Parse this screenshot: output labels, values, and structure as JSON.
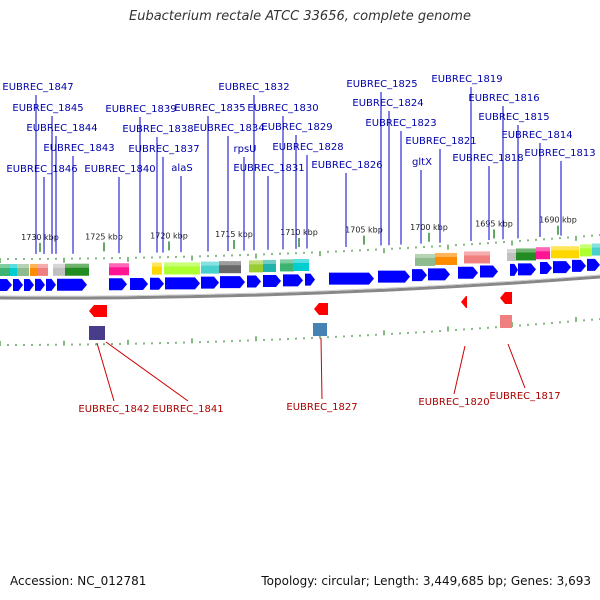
{
  "title": "Eubacterium rectale ATCC 33656, complete genome",
  "footer": {
    "accession": "Accession: NC_012781",
    "topology": "Topology: circular; Length: 3,449,685 bp; Genes: 3,693"
  },
  "colors": {
    "forward_gene": "#0000ff",
    "reverse_gene": "#ff0000",
    "forward_label": "#0000aa",
    "reverse_label": "#aa0000",
    "tick": "#2e8b2e",
    "backbone": "#888888"
  },
  "tick_labels": [
    "1730 kbp",
    "1725 kbp",
    "1720 kbp",
    "1715 kbp",
    "1710 kbp",
    "1705 kbp",
    "1700 kbp",
    "1695 kbp",
    "1690 kbp"
  ],
  "forward_genes": [
    "EUBREC_1847",
    "EUBREC_1846",
    "EUBREC_1845",
    "EUBREC_1844",
    "EUBREC_1843",
    "EUBREC_1840",
    "EUBREC_1839",
    "EUBREC_1838",
    "EUBREC_1837",
    "alaS",
    "EUBREC_1835",
    "EUBREC_1834",
    "EUBREC_1832",
    "rpsU",
    "EUBREC_1831",
    "EUBREC_1830",
    "EUBREC_1829",
    "EUBREC_1828",
    "EUBREC_1826",
    "EUBREC_1825",
    "EUBREC_1824",
    "EUBREC_1823",
    "gltX",
    "EUBREC_1821",
    "EUBREC_1819",
    "EUBREC_1818",
    "EUBREC_1816",
    "EUBREC_1815",
    "EUBREC_1814",
    "EUBREC_1813"
  ],
  "reverse_genes": [
    "EUBREC_1842",
    "EUBREC_1841",
    "EUBREC_1827",
    "EUBREC_1820",
    "EUBREC_1817"
  ]
}
